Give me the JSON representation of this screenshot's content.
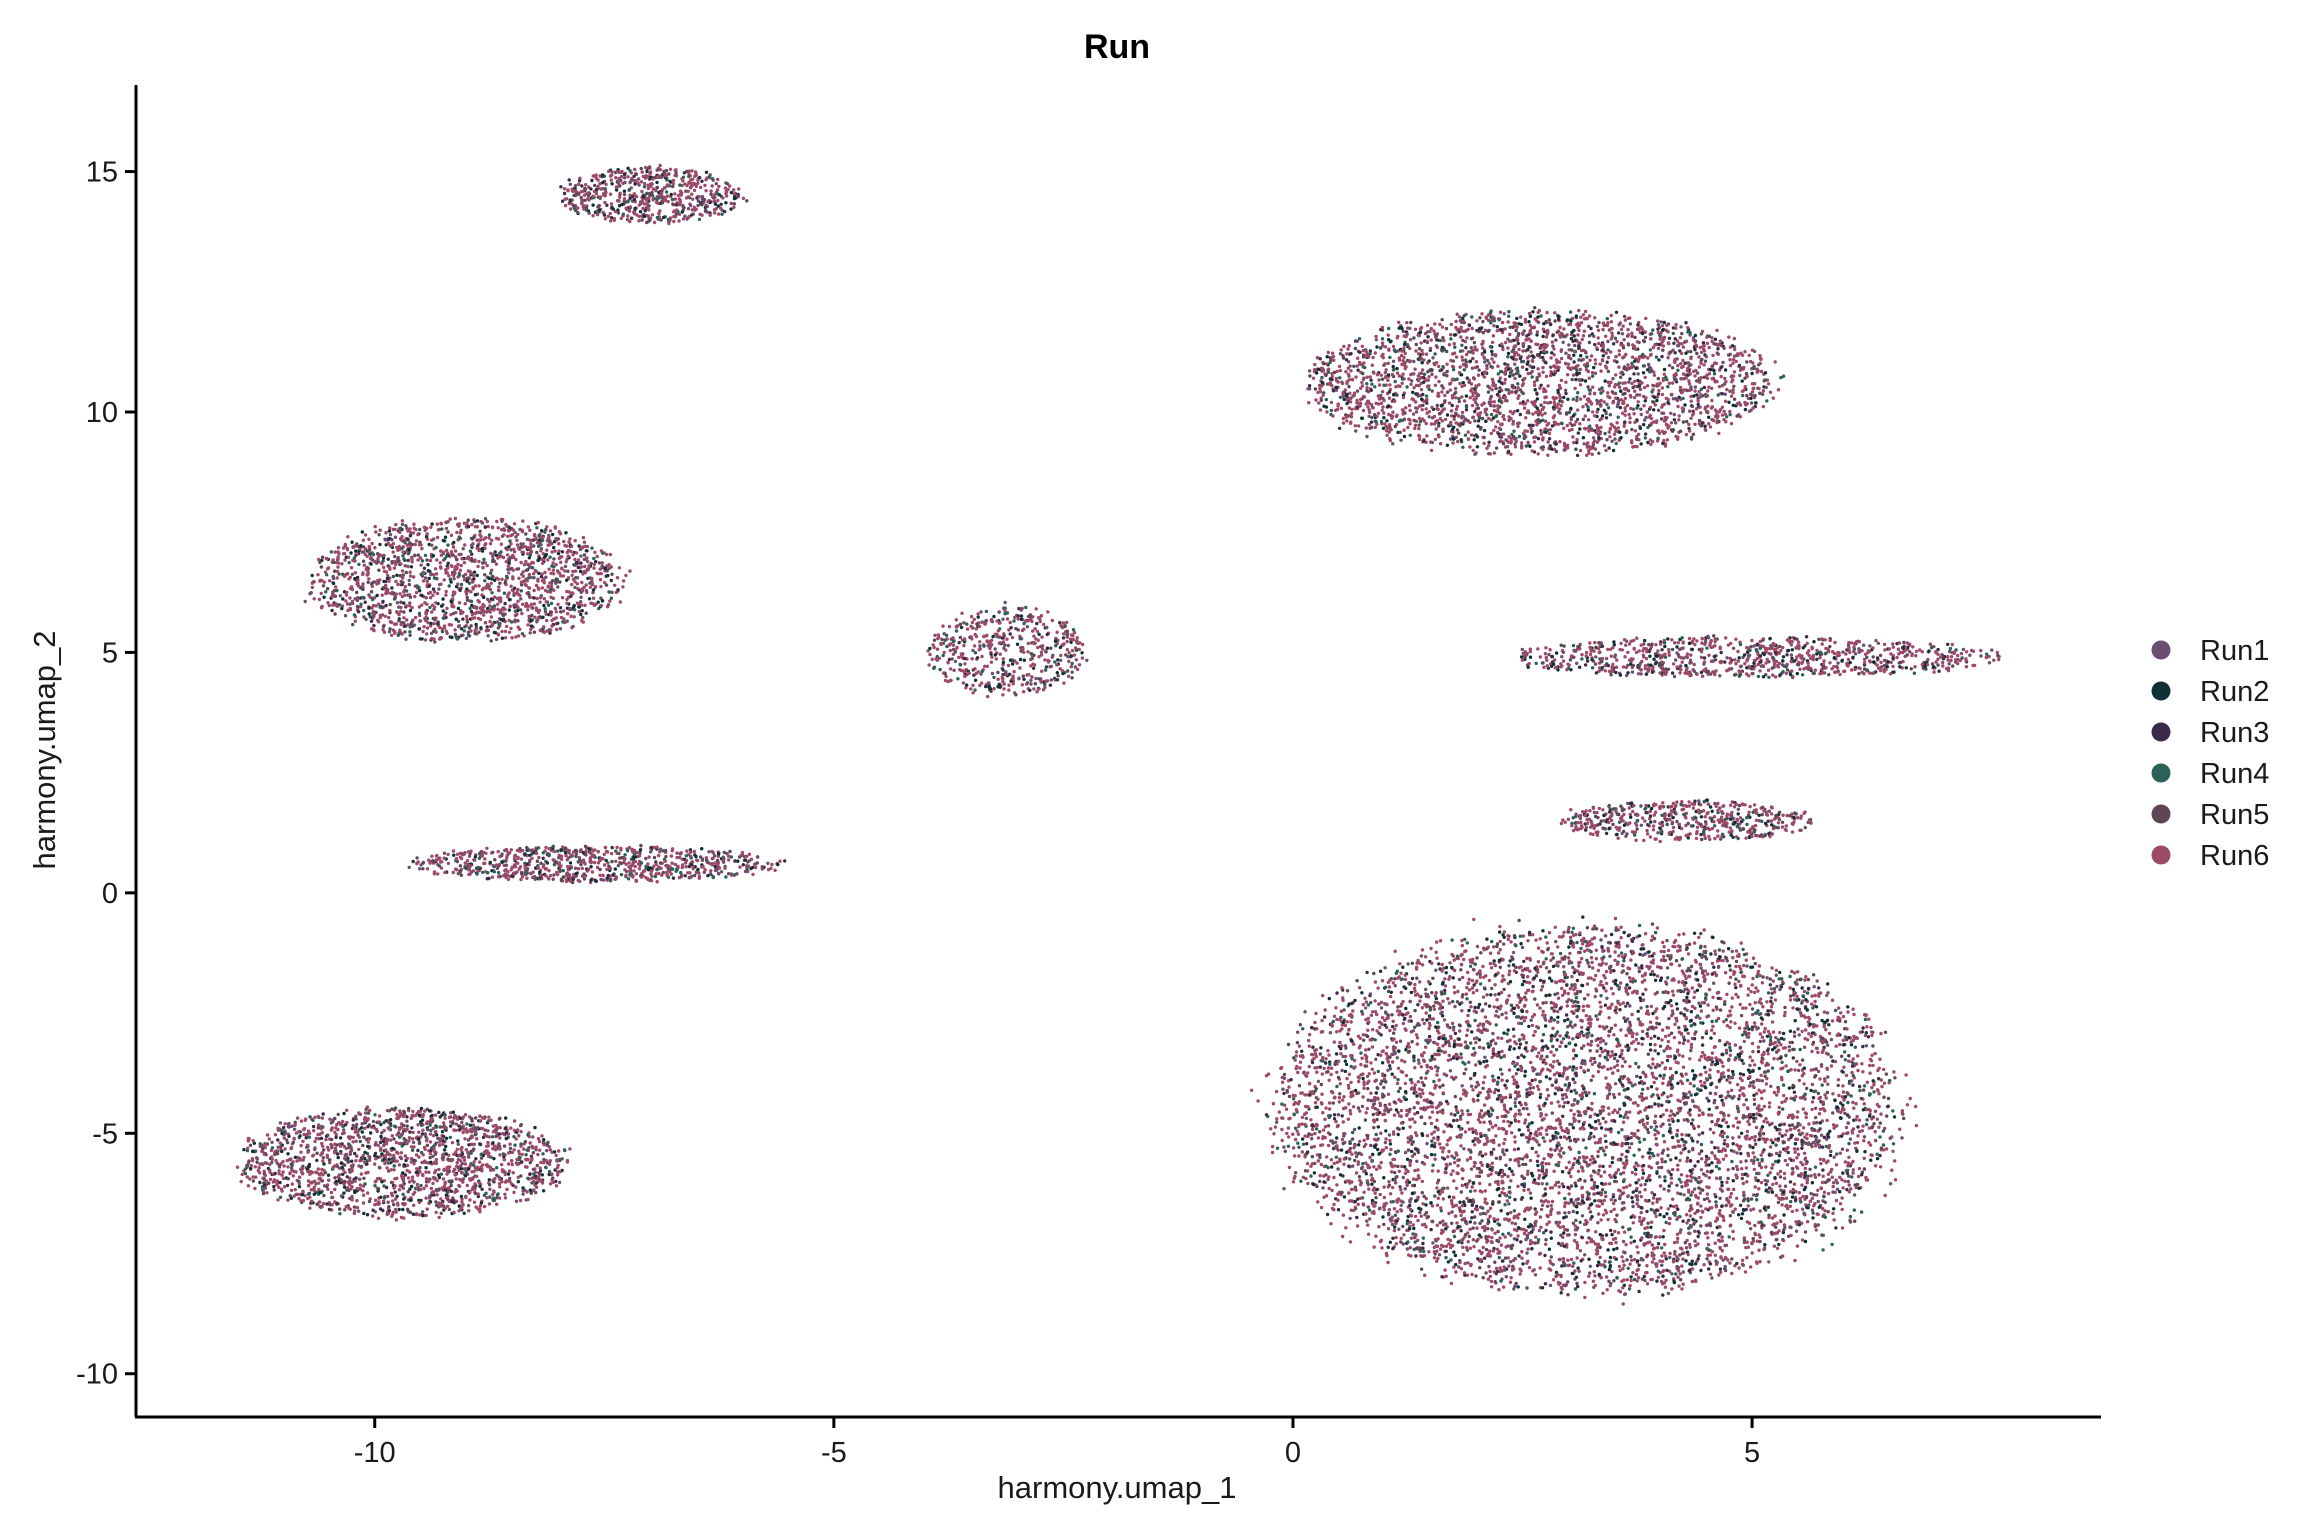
{
  "chart_data": {
    "type": "scatter",
    "title": "Run",
    "xlabel": "harmony.umap_1",
    "ylabel": "harmony.umap_2",
    "xlim": [
      -12.6,
      8.8
    ],
    "ylim": [
      -10.9,
      16.8
    ],
    "xticks": [
      -10,
      -5,
      0,
      5
    ],
    "yticks": [
      -10,
      -5,
      0,
      5,
      10,
      15
    ],
    "grid": false,
    "legend_position": "right",
    "series": [
      {
        "name": "Run1",
        "color": "#6B4F72"
      },
      {
        "name": "Run2",
        "color": "#0F3035"
      },
      {
        "name": "Run3",
        "color": "#3A2A4A"
      },
      {
        "name": "Run4",
        "color": "#2C6158"
      },
      {
        "name": "Run5",
        "color": "#5E4655"
      },
      {
        "name": "Run6",
        "color": "#9C4A68"
      }
    ],
    "clusters": [
      {
        "label": "top-left-small",
        "center": [
          -7.0,
          14.5
        ],
        "spread": [
          0.95,
          0.55
        ]
      },
      {
        "label": "upper-right",
        "center": [
          2.7,
          10.6
        ],
        "spread": [
          2.4,
          1.4
        ]
      },
      {
        "label": "left-middle",
        "center": [
          -9.0,
          6.5
        ],
        "spread": [
          1.6,
          1.2
        ]
      },
      {
        "label": "center-small",
        "center": [
          -3.1,
          5.0
        ],
        "spread": [
          0.8,
          0.9
        ]
      },
      {
        "label": "left-strand",
        "center": [
          -7.6,
          0.6
        ],
        "spread": [
          1.9,
          0.35
        ]
      },
      {
        "label": "bottom-left",
        "center": [
          -9.7,
          -5.6
        ],
        "spread": [
          1.7,
          1.05
        ]
      },
      {
        "label": "right-arm-upper",
        "center": [
          5.0,
          4.9
        ],
        "spread": [
          2.5,
          0.4
        ]
      },
      {
        "label": "right-arm-middle",
        "center": [
          4.3,
          1.5
        ],
        "spread": [
          1.3,
          0.4
        ]
      },
      {
        "label": "large-right",
        "center": [
          3.2,
          -4.5
        ],
        "spread": [
          3.2,
          3.6
        ]
      }
    ]
  }
}
